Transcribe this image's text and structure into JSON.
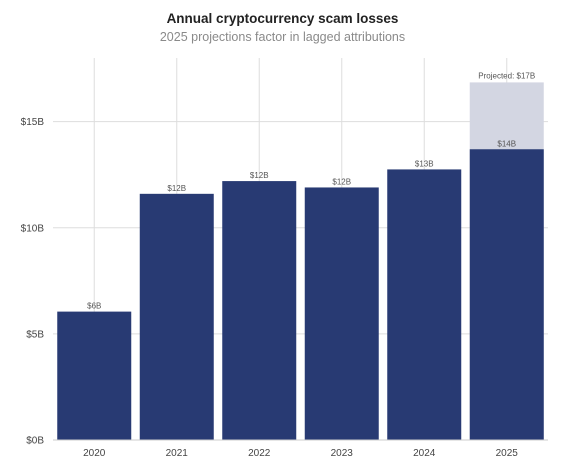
{
  "chart_data": {
    "type": "bar",
    "title": "Annual cryptocurrency scam losses",
    "subtitle": "2025 projections factor in lagged attributions",
    "categories": [
      "2020",
      "2021",
      "2022",
      "2023",
      "2024",
      "2025"
    ],
    "values": [
      6.05,
      11.6,
      12.2,
      11.9,
      12.75,
      13.7
    ],
    "value_labels": [
      "$6B",
      "$12B",
      "$12B",
      "$12B",
      "$13B",
      "$14B"
    ],
    "projected": {
      "category": "2025",
      "value": 16.85,
      "label": "Projected: $17B"
    },
    "y_ticks": [
      0,
      5,
      10,
      15
    ],
    "y_tick_labels": [
      "$0B",
      "$5B",
      "$10B",
      "$15B"
    ],
    "ylim": [
      0,
      18
    ],
    "grid": true,
    "colors": {
      "bar": "#283a73",
      "projected": "#d3d6e2",
      "grid": "#dddddd"
    }
  }
}
